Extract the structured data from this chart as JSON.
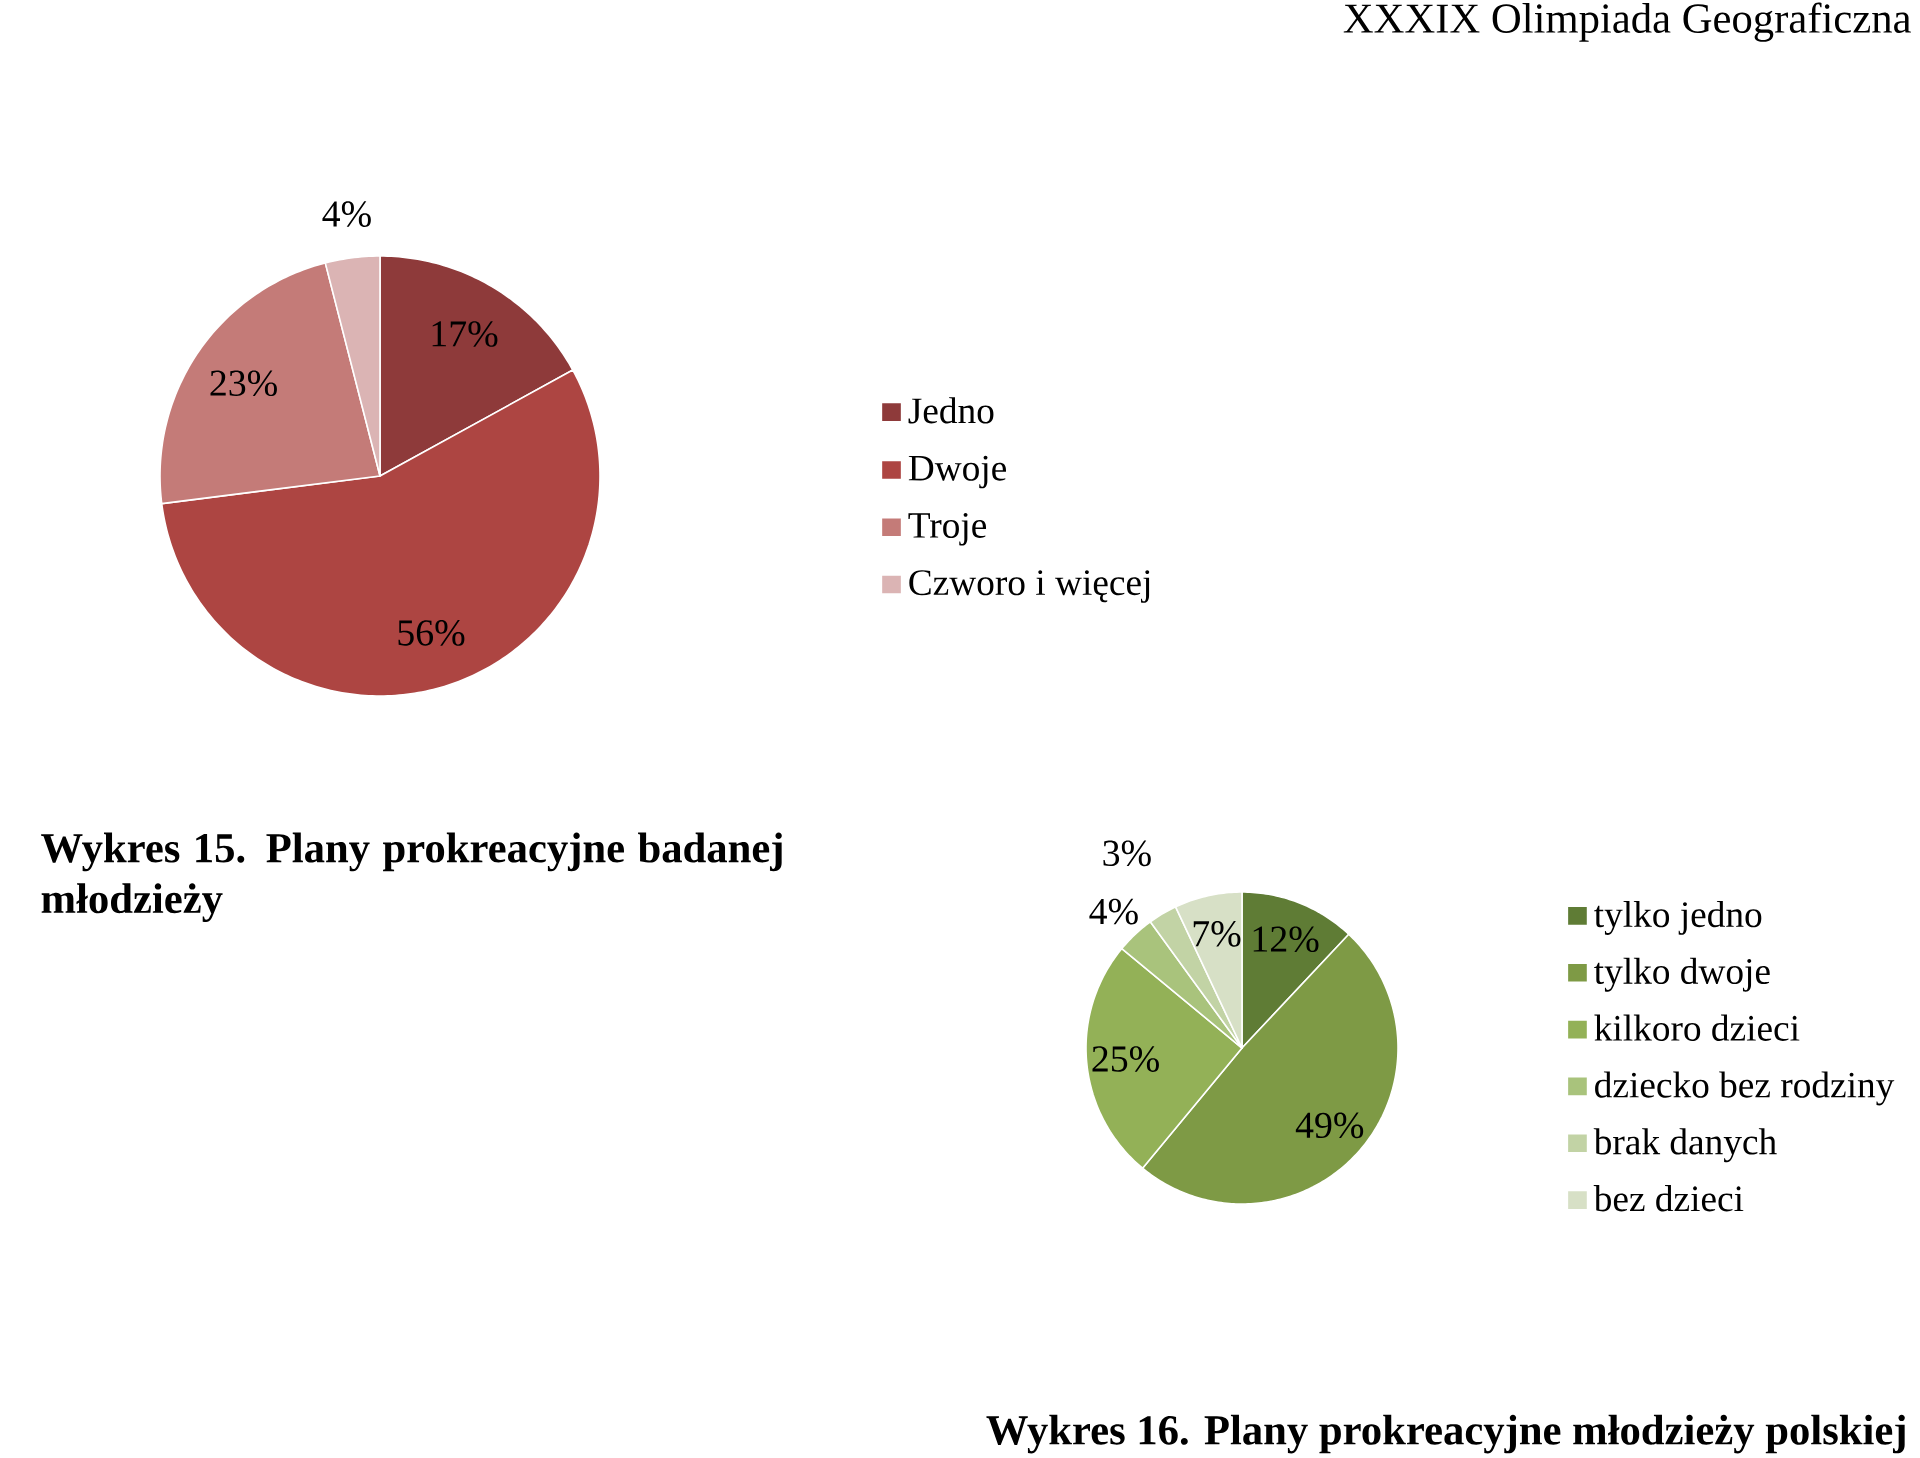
{
  "chart_data": [
    {
      "type": "pie",
      "title": "Wykres 15. Plany prokreacyjne badanej młodzieży",
      "categories": [
        "Jedno",
        "Dwoje",
        "Troje",
        "Czworo i więcej"
      ],
      "values": [
        17,
        56,
        23,
        4
      ],
      "colors": [
        "#8e3a3a",
        "#ad4542",
        "#c47b78",
        "#dbb4b4"
      ],
      "value_labels": [
        "17%",
        "56%",
        "23%",
        "4%"
      ],
      "legend": "right",
      "annotations": [
        "XXXIX Olimpiada Geograficzna"
      ]
    },
    {
      "type": "pie",
      "title": "Wykres 16. Plany prokreacyjne młodzieży polskiej",
      "categories": [
        "tylko jedno",
        "tylko dwoje",
        "kilkoro dzieci",
        "dziecko bez rodziny",
        "brak danych",
        "bez dzieci"
      ],
      "values": [
        12,
        49,
        25,
        4,
        3,
        7
      ],
      "colors": [
        "#5f7c35",
        "#7e9a45",
        "#93b157",
        "#a9c37c",
        "#c2d3a5",
        "#d7e0c6"
      ],
      "value_labels": [
        "12%",
        "49%",
        "25%",
        "4%",
        "3%",
        "7%"
      ],
      "legend": "right"
    }
  ]
}
